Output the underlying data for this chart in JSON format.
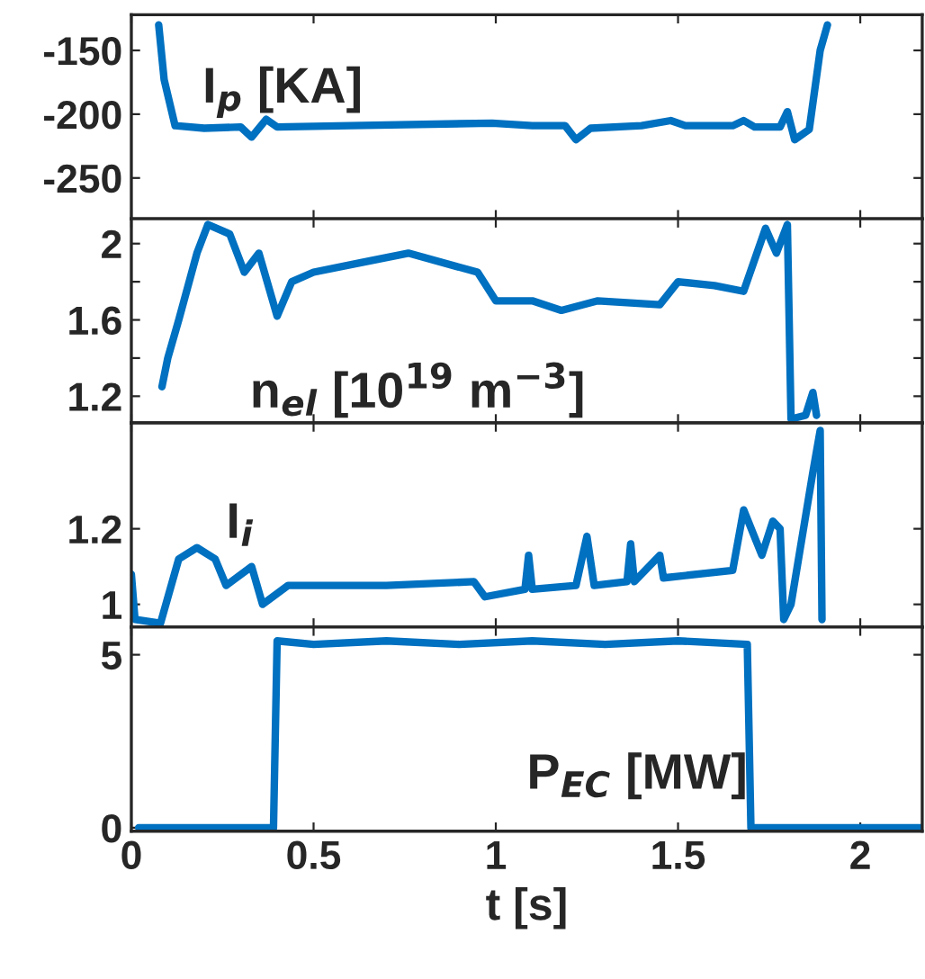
{
  "chart_data": [
    {
      "type": "line",
      "annotations": [
        "I$_{p}$ [KA]"
      ],
      "xlim": [
        0,
        2.17
      ],
      "xticks": [
        {
          "value": 0,
          "label": null
        },
        {
          "value": 0.5,
          "label": null
        },
        {
          "value": 1,
          "label": null
        },
        {
          "value": 1.5,
          "label": null
        },
        {
          "value": 2,
          "label": null
        }
      ],
      "ylim": [
        -282,
        -122
      ],
      "yticks": [
        -250,
        -200,
        -150
      ],
      "tick_labels": "y",
      "grid": false,
      "series": [
        {
          "color": "#0070c0",
          "x": [
            0.075,
            0.09,
            0.12,
            0.2,
            0.3,
            0.33,
            0.37,
            0.4,
            0.6,
            0.99,
            1.1,
            1.19,
            1.22,
            1.26,
            1.4,
            1.48,
            1.52,
            1.65,
            1.68,
            1.71,
            1.78,
            1.8,
            1.82,
            1.86,
            1.89,
            1.91
          ],
          "values": [
            -130,
            -173,
            -209,
            -211,
            -210,
            -218,
            -204,
            -210,
            -209,
            -207,
            -209,
            -209,
            -220,
            -211,
            -209,
            -205,
            -209,
            -209,
            -205,
            -210,
            -210,
            -198,
            -220,
            -212,
            -150,
            -130
          ]
        }
      ]
    },
    {
      "type": "line",
      "annotations": [
        "n$_{el}$ [10$^{19}$ m$^{−3}$]"
      ],
      "xlim": [
        0,
        2.17
      ],
      "xticks": [
        {
          "value": 0,
          "label": null
        },
        {
          "value": 0.5,
          "label": null
        },
        {
          "value": 1,
          "label": null
        },
        {
          "value": 1.5,
          "label": null
        },
        {
          "value": 2,
          "label": null
        }
      ],
      "ylim": [
        1.06,
        2.13
      ],
      "yticks": [
        1.2,
        {
          "value": 1.4,
          "label": null
        },
        1.6,
        {
          "value": 1.8,
          "label": null
        },
        2
      ],
      "tick_labels": "y",
      "grid": false,
      "series": [
        {
          "color": "#0070c0",
          "x": [
            0.084,
            0.1,
            0.13,
            0.18,
            0.21,
            0.27,
            0.31,
            0.35,
            0.4,
            0.44,
            0.5,
            0.63,
            0.76,
            0.95,
            1.0,
            1.1,
            1.18,
            1.28,
            1.45,
            1.5,
            1.6,
            1.68,
            1.74,
            1.77,
            1.8,
            1.81,
            1.85,
            1.87,
            1.88
          ],
          "values": [
            1.25,
            1.4,
            1.6,
            1.95,
            2.1,
            2.05,
            1.85,
            1.95,
            1.62,
            1.8,
            1.85,
            1.9,
            1.95,
            1.85,
            1.7,
            1.7,
            1.65,
            1.7,
            1.68,
            1.8,
            1.78,
            1.75,
            2.08,
            1.95,
            2.1,
            1.08,
            1.1,
            1.22,
            1.1
          ]
        }
      ]
    },
    {
      "type": "line",
      "annotations": [
        "I$_{i}$"
      ],
      "xlim": [
        0,
        2.17
      ],
      "xticks": [
        {
          "value": 0,
          "label": null
        },
        {
          "value": 0.5,
          "label": null
        },
        {
          "value": 1,
          "label": null
        },
        {
          "value": 1.5,
          "label": null
        },
        {
          "value": 2,
          "label": null
        }
      ],
      "ylim": [
        0.94,
        1.48
      ],
      "yticks": [
        1,
        1.2
      ],
      "tick_labels": "y",
      "grid": false,
      "series": [
        {
          "color": "#0070c0",
          "x": [
            0.0,
            0.01,
            0.08,
            0.13,
            0.18,
            0.23,
            0.26,
            0.33,
            0.36,
            0.43,
            0.7,
            0.94,
            0.97,
            1.08,
            1.09,
            1.1,
            1.22,
            1.25,
            1.27,
            1.36,
            1.37,
            1.38,
            1.45,
            1.46,
            1.65,
            1.68,
            1.73,
            1.76,
            1.78,
            1.79,
            1.81,
            1.87,
            1.89,
            1.895
          ],
          "values": [
            1.08,
            0.96,
            0.95,
            1.12,
            1.15,
            1.12,
            1.05,
            1.1,
            1.0,
            1.05,
            1.05,
            1.06,
            1.02,
            1.04,
            1.13,
            1.04,
            1.05,
            1.18,
            1.05,
            1.06,
            1.16,
            1.06,
            1.13,
            1.07,
            1.09,
            1.25,
            1.13,
            1.22,
            1.2,
            0.96,
            1.0,
            1.35,
            1.46,
            0.96
          ]
        }
      ]
    },
    {
      "type": "line",
      "annotations": [
        "P$_{EC}$ [MW]"
      ],
      "xlabel": "t [s]",
      "xlim": [
        0,
        2.17
      ],
      "xticks": [
        0,
        0.5,
        1,
        1.5,
        2
      ],
      "ylim": [
        -0.1,
        5.8
      ],
      "yticks": [
        0,
        5
      ],
      "grid": false,
      "series": [
        {
          "color": "#0070c0",
          "x": [
            0.02,
            0.39,
            0.4,
            0.5,
            0.7,
            0.9,
            1.1,
            1.3,
            1.5,
            1.69,
            1.7,
            2.17
          ],
          "values": [
            0,
            0,
            5.4,
            5.3,
            5.4,
            5.3,
            5.4,
            5.3,
            5.4,
            5.3,
            0,
            0
          ]
        }
      ]
    }
  ]
}
